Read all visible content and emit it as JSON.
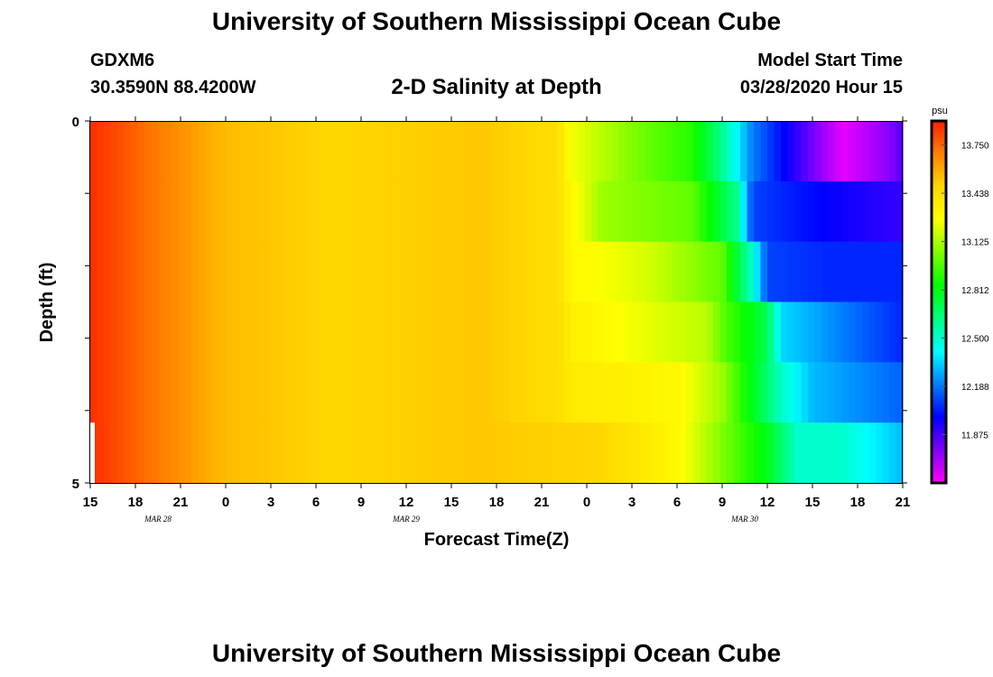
{
  "header": {
    "title": "University of Southern Mississippi Ocean Cube",
    "station": "GDXM6",
    "coordinates": "30.3590N 88.4200W",
    "subtitle": "2-D Salinity at Depth",
    "model_start_label": "Model Start Time",
    "model_start_value": "03/28/2020 Hour 15"
  },
  "footer": {
    "title": "University of Southern Mississippi Ocean Cube"
  },
  "chart_data": {
    "type": "heatmap",
    "xlabel": "Forecast Time(Z)",
    "ylabel": "Depth (ft)",
    "x_tick_labels": [
      "15",
      "18",
      "21",
      "0",
      "3",
      "6",
      "9",
      "12",
      "15",
      "18",
      "21",
      "0",
      "3",
      "6",
      "9",
      "12",
      "15",
      "18",
      "21"
    ],
    "date_labels": [
      {
        "label": "MAR 28",
        "after_tick": 1.5
      },
      {
        "label": "MAR 29",
        "after_tick": 7
      },
      {
        "label": "MAR 30",
        "after_tick": 14.5
      }
    ],
    "y_tick_labels": [
      "0",
      "5"
    ],
    "ylim": [
      0,
      5
    ],
    "hours_range": [
      0,
      54
    ],
    "colorbar": {
      "unit": "psu",
      "min": 11.562,
      "max": 13.906,
      "tick_values": [
        13.75,
        13.438,
        13.125,
        12.812,
        12.5,
        12.188,
        11.875
      ],
      "tick_labels": [
        "13.750",
        "13.438",
        "13.125",
        "12.812",
        "12.500",
        "12.188",
        "11.875"
      ],
      "colors": [
        "#ff00ff",
        "#8000ff",
        "#0000ff",
        "#0080ff",
        "#00ffff",
        "#00ff80",
        "#00ff00",
        "#80ff00",
        "#ffff00",
        "#ffd800",
        "#ff8000",
        "#ff2000"
      ]
    },
    "depth_layers": [
      {
        "depth": "0-1",
        "keyframes": [
          [
            0,
            13.88
          ],
          [
            4,
            13.72
          ],
          [
            9,
            13.55
          ],
          [
            16,
            13.48
          ],
          [
            26,
            13.52
          ],
          [
            31,
            13.45
          ],
          [
            32,
            13.25
          ],
          [
            36,
            13.05
          ],
          [
            40,
            12.9
          ],
          [
            42,
            12.6
          ],
          [
            44,
            12.2
          ],
          [
            47,
            11.9
          ],
          [
            50,
            11.6
          ],
          [
            53,
            11.75
          ],
          [
            54,
            11.85
          ]
        ]
      },
      {
        "depth": "1-2",
        "keyframes": [
          [
            0,
            13.88
          ],
          [
            4,
            13.72
          ],
          [
            9,
            13.55
          ],
          [
            16,
            13.48
          ],
          [
            26,
            13.52
          ],
          [
            31,
            13.45
          ],
          [
            32,
            13.3
          ],
          [
            34,
            13.1
          ],
          [
            40,
            13.0
          ],
          [
            43,
            12.6
          ],
          [
            44,
            12.1
          ],
          [
            48,
            12.0
          ],
          [
            54,
            11.9
          ]
        ]
      },
      {
        "depth": "2-3",
        "keyframes": [
          [
            0,
            13.88
          ],
          [
            4,
            13.72
          ],
          [
            9,
            13.55
          ],
          [
            16,
            13.48
          ],
          [
            26,
            13.52
          ],
          [
            31,
            13.45
          ],
          [
            32,
            13.3
          ],
          [
            37,
            13.2
          ],
          [
            42,
            13.0
          ],
          [
            44,
            12.5
          ],
          [
            45,
            12.1
          ],
          [
            49,
            12.05
          ],
          [
            54,
            12.05
          ]
        ]
      },
      {
        "depth": "3-4",
        "keyframes": [
          [
            0,
            13.88
          ],
          [
            4,
            13.72
          ],
          [
            9,
            13.55
          ],
          [
            16,
            13.48
          ],
          [
            26,
            13.52
          ],
          [
            31,
            13.45
          ],
          [
            32,
            13.35
          ],
          [
            36,
            13.25
          ],
          [
            41,
            13.15
          ],
          [
            42,
            13.0
          ],
          [
            45,
            12.7
          ],
          [
            46,
            12.35
          ],
          [
            54,
            12.05
          ]
        ]
      },
      {
        "depth": "4-5",
        "keyframes": [
          [
            0,
            13.88
          ],
          [
            4,
            13.72
          ],
          [
            9,
            13.55
          ],
          [
            16,
            13.48
          ],
          [
            26,
            13.52
          ],
          [
            31,
            13.45
          ],
          [
            32,
            13.38
          ],
          [
            39,
            13.3
          ],
          [
            42,
            13.1
          ],
          [
            46,
            12.5
          ],
          [
            48,
            12.3
          ],
          [
            54,
            12.15
          ]
        ]
      },
      {
        "depth": "5",
        "keyframes": [
          [
            0,
            13.88
          ],
          [
            4,
            13.72
          ],
          [
            9,
            13.55
          ],
          [
            16,
            13.48
          ],
          [
            26,
            13.52
          ],
          [
            34,
            13.48
          ],
          [
            39,
            13.3
          ],
          [
            42,
            13.05
          ],
          [
            45,
            12.8
          ],
          [
            47,
            12.5
          ],
          [
            50,
            12.5
          ],
          [
            54,
            12.3
          ]
        ]
      }
    ]
  }
}
